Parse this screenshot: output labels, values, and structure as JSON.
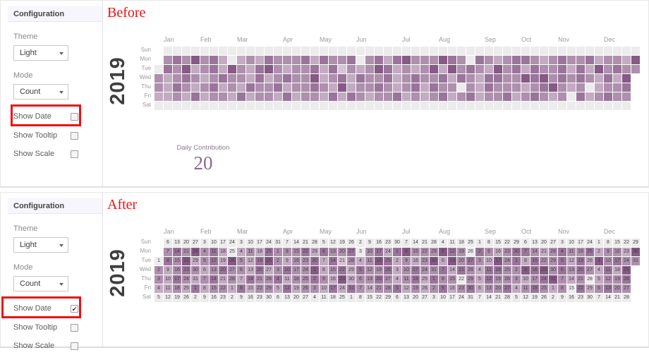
{
  "panels": [
    {
      "label": "Before",
      "toggles": {
        "show_date": false,
        "show_tooltip": false,
        "show_scale": false
      },
      "legend_visible": true
    },
    {
      "label": "After",
      "toggles": {
        "show_date": true,
        "show_tooltip": false,
        "show_scale": false
      },
      "legend_visible": false
    }
  ],
  "config": {
    "title": "Configuration",
    "theme_label": "Theme",
    "theme_value": "Light",
    "mode_label": "Mode",
    "mode_value": "Count",
    "toggles": [
      {
        "label": "Show Date"
      },
      {
        "label": "Show Tooltip"
      },
      {
        "label": "Show Scale"
      }
    ]
  },
  "chart_data": {
    "type": "heatmap",
    "title": "Daily Contribution calendar heatmap, year 2019",
    "year": "2019",
    "weekday_labels": [
      "Sun",
      "Mon",
      "Tue",
      "Wed",
      "Thu",
      "Fri",
      "Sat"
    ],
    "month_labels": [
      "Jan",
      "Feb",
      "Mar",
      "Apr",
      "May",
      "Jun",
      "Jul",
      "Aug",
      "Sep",
      "Oct",
      "Nov",
      "Dec"
    ],
    "month_week_index": [
      0,
      4,
      8,
      13,
      17,
      21,
      26,
      30,
      35,
      39,
      43,
      48
    ],
    "weeks": 53,
    "start_weekday_index": 2,
    "days_in_year": 365,
    "month_lengths": [
      31,
      28,
      31,
      30,
      31,
      30,
      31,
      31,
      30,
      31,
      30,
      31
    ],
    "levels_palette": [
      "#ececec",
      "#d6c5d5",
      "#c3abc2",
      "#ae8fad",
      "#9a759a",
      "#855a84"
    ],
    "rows_levels": [
      "-0000000000000000000000000000000000000000000000000000",
      "-3435342023243334243340342453335430432344323433423325",
      "04352342532453233424132354232352534325342433424253433",
      "3234323433242343352342433423433424324433545343432425-",
      "3243234232433423343252334323424330324333234532302334-",
      "2232423324233242332424323342323423423342343230423433-",
      "0000000000000000000000000000000000000000000000000000-"
    ],
    "legend_title": "Daily Contribution",
    "legend_value": "20"
  },
  "colors": {
    "annotation_red": "#f10f0f",
    "config_header_bg": "#f6f6fc",
    "weekend_cell": "#ececec",
    "max_cell": "#855a84",
    "legend_value_color": "#8b6a8b"
  }
}
